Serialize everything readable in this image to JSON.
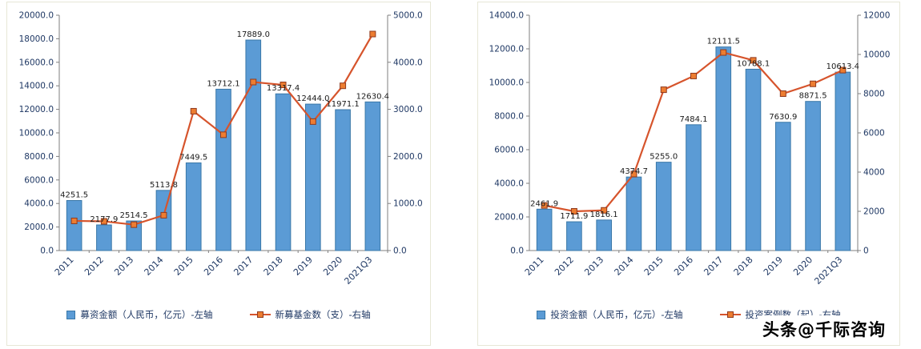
{
  "watermark": {
    "text": "头条@千际咨询"
  },
  "chart_data": [
    {
      "type": "bar+line",
      "title": "",
      "categories": [
        "2011",
        "2012",
        "2013",
        "2014",
        "2015",
        "2016",
        "2017",
        "2018",
        "2019",
        "2020",
        "2021Q3"
      ],
      "left_axis": {
        "min": 0,
        "max": 20000,
        "step": 2000,
        "decimals": 1
      },
      "right_axis": {
        "min": 0,
        "max": 5000,
        "step": 1000,
        "decimals": 1
      },
      "grid": false,
      "legend_position": "bottom",
      "series": [
        {
          "name": "募资金额（人民币，亿元）-左轴",
          "type": "bar",
          "axis": "left",
          "color": "#5B9BD5",
          "border": "#3A78A8",
          "values": [
            4251.5,
            2177.9,
            2514.5,
            5113.8,
            7449.5,
            13712.1,
            17889.0,
            13317.4,
            12444.0,
            11971.1,
            12630.4
          ],
          "show_labels": true
        },
        {
          "name": "新募基金数（支）-右轴",
          "type": "line",
          "axis": "right",
          "color": "#D6542C",
          "marker": "#ED7D31",
          "marker_border": "#8f3a1e",
          "values": [
            630,
            620,
            550,
            750,
            2960,
            2460,
            3580,
            3520,
            2740,
            3500,
            4600
          ],
          "show_labels": false
        }
      ]
    },
    {
      "type": "bar+line",
      "title": "",
      "categories": [
        "2011",
        "2012",
        "2013",
        "2014",
        "2015",
        "2016",
        "2017",
        "2018",
        "2019",
        "2020",
        "2021Q3"
      ],
      "left_axis": {
        "min": 0,
        "max": 14000,
        "step": 2000,
        "decimals": 1
      },
      "right_axis": {
        "min": 0,
        "max": 12000,
        "step": 2000,
        "decimals": 0
      },
      "grid": false,
      "legend_position": "bottom",
      "series": [
        {
          "name": "投资金额（人民币，亿元）-左轴",
          "type": "bar",
          "axis": "left",
          "color": "#5B9BD5",
          "border": "#3A78A8",
          "values": [
            2461.9,
            1711.9,
            1816.1,
            4374.7,
            5255.0,
            7484.1,
            12111.5,
            10788.1,
            7630.9,
            8871.5,
            10613.4
          ],
          "show_labels": true
        },
        {
          "name": "投资案例数（起）-右轴",
          "type": "line",
          "axis": "right",
          "color": "#D6542C",
          "marker": "#ED7D31",
          "marker_border": "#8f3a1e",
          "values": [
            2300,
            2000,
            2050,
            3900,
            8200,
            8900,
            10100,
            9700,
            8000,
            8500,
            9200
          ],
          "show_labels": false
        }
      ]
    }
  ],
  "style": {
    "axis_label_color": "#1F3864",
    "data_label_color": "#1a1a1a",
    "axis_line_color": "#7f7f7f"
  }
}
